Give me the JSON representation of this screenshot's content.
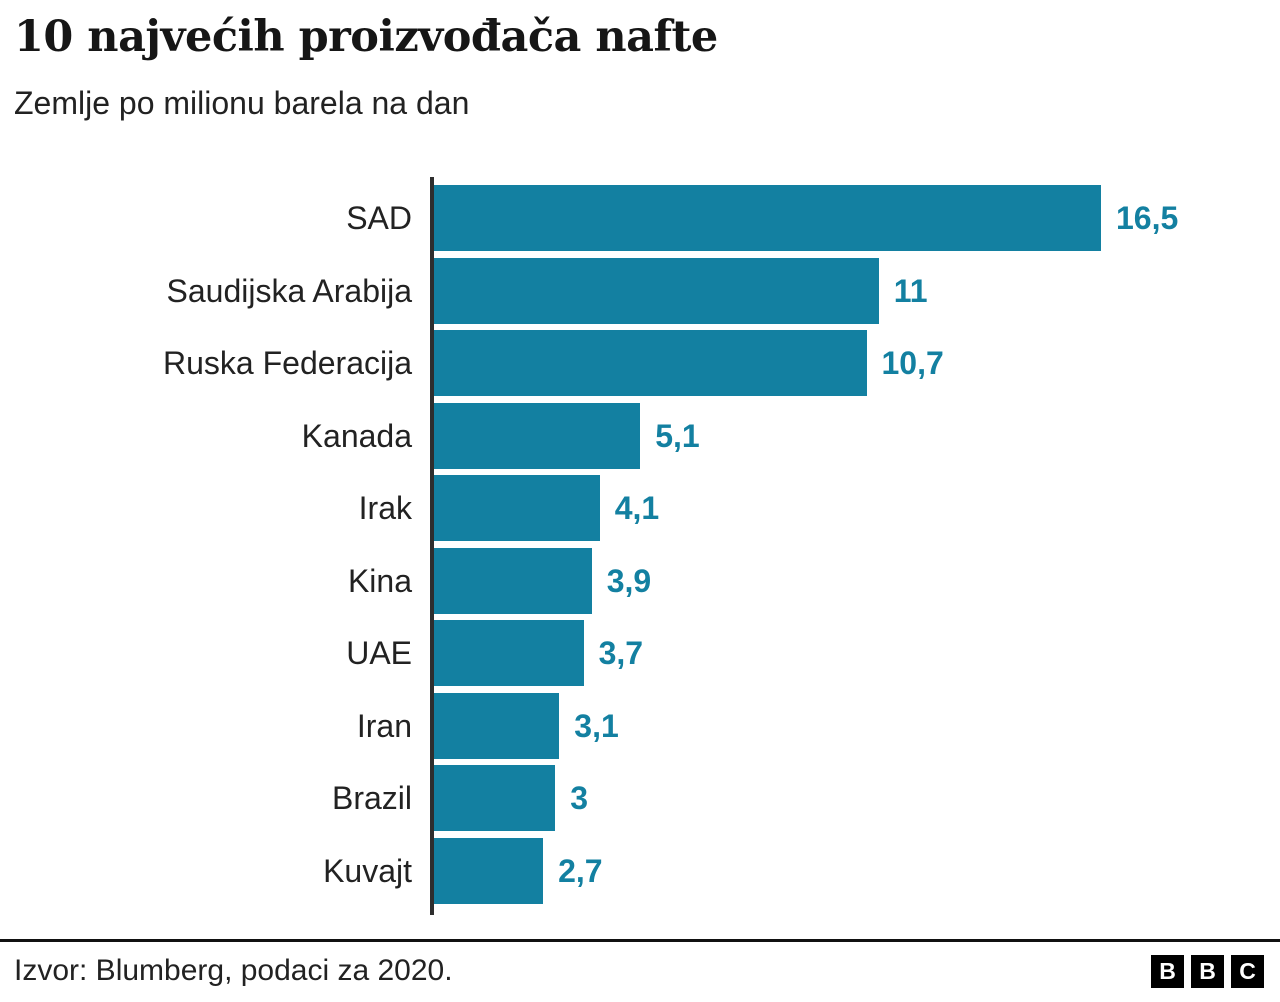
{
  "header": {
    "title": "10 najvećih proizvođača nafte",
    "subtitle": "Zemlje po milionu barela na dan"
  },
  "chart_data": {
    "type": "bar",
    "orientation": "horizontal",
    "title": "10 najvećih proizvođača nafte",
    "subtitle": "Zemlje po milionu barela na dan",
    "categories": [
      "SAD",
      "Saudijska Arabija",
      "Ruska Federacija",
      "Kanada",
      "Irak",
      "Kina",
      "UAE",
      "Iran",
      "Brazil",
      "Kuvajt"
    ],
    "values": [
      16.5,
      11,
      10.7,
      5.1,
      4.1,
      3.9,
      3.7,
      3.1,
      3,
      2.7
    ],
    "value_labels": [
      "16,5",
      "11",
      "10,7",
      "5,1",
      "4,1",
      "3,9",
      "3,7",
      "3,1",
      "3",
      "2,7"
    ],
    "xlabel": "",
    "ylabel": "",
    "xlim": [
      0,
      16.5
    ],
    "grid": false,
    "legend": false
  },
  "footer": {
    "source": "Izvor: Blumberg, podaci za 2020.",
    "logo_letters": [
      "B",
      "B",
      "C"
    ]
  },
  "colors": {
    "bar": "#1380A1",
    "value_label": "#1380A1",
    "axis": "#2e2e2e",
    "text": "#222222",
    "divider": "#111111"
  }
}
